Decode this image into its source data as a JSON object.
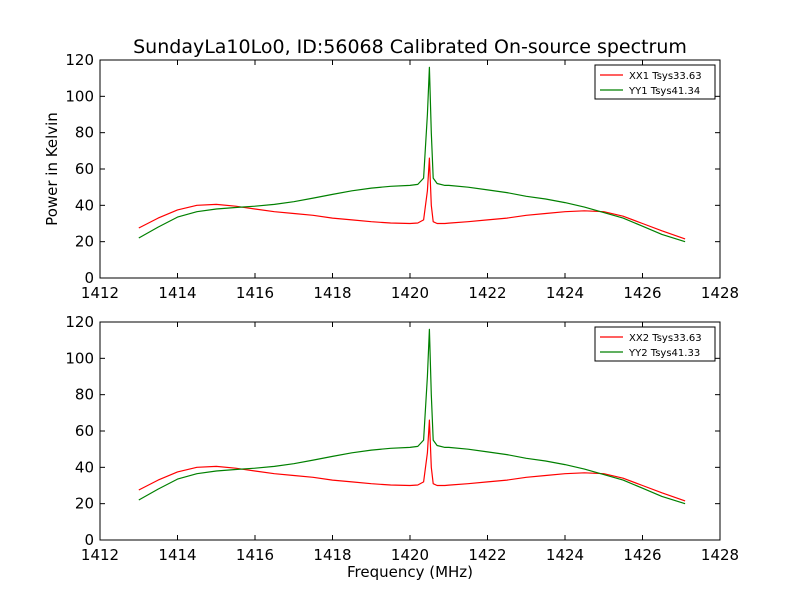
{
  "title": "SundayLa10Lo0, ID:56068 Calibrated On-source spectrum",
  "colors": {
    "xx": "#ff0000",
    "yy": "#008000",
    "axis": "#000000",
    "background": "#ffffff"
  },
  "chart_data": [
    {
      "type": "line",
      "title": "SundayLa10Lo0, ID:56068 Calibrated On-source spectrum",
      "xlabel": "",
      "ylabel": "Power in Kelvin",
      "xlim": [
        1412,
        1428
      ],
      "ylim": [
        0,
        120
      ],
      "xticks": [
        "1412",
        "1414",
        "1416",
        "1418",
        "1420",
        "1422",
        "1424",
        "1426",
        "1428"
      ],
      "yticks": [
        "0",
        "20",
        "40",
        "60",
        "80",
        "100",
        "120"
      ],
      "grid": false,
      "legend_position": "top-right",
      "x": [
        1413.0,
        1413.5,
        1414.0,
        1414.5,
        1415.0,
        1415.5,
        1416.0,
        1416.5,
        1417.0,
        1417.5,
        1418.0,
        1418.5,
        1419.0,
        1419.5,
        1420.0,
        1420.2,
        1420.35,
        1420.45,
        1420.5,
        1420.55,
        1420.6,
        1420.7,
        1420.9,
        1421.0,
        1421.5,
        1422.0,
        1422.5,
        1423.0,
        1423.5,
        1424.0,
        1424.5,
        1425.0,
        1425.5,
        1426.0,
        1426.5,
        1427.1
      ],
      "series": [
        {
          "name": "XX1 Tsys33.63",
          "color": "#ff0000",
          "values": [
            27.5,
            33,
            37.5,
            40,
            40.5,
            39.5,
            38,
            36.5,
            35.5,
            34.5,
            33,
            32,
            31,
            30.3,
            30,
            30.3,
            32,
            48,
            66,
            40,
            31,
            30,
            30,
            30.2,
            31,
            32,
            33,
            34.5,
            35.5,
            36.5,
            37,
            36.5,
            34,
            30,
            26,
            21.5
          ]
        },
        {
          "name": "YY1 Tsys41.34",
          "color": "#008000",
          "values": [
            22,
            28,
            33.5,
            36.5,
            38,
            38.8,
            39.5,
            40.5,
            42,
            44,
            46,
            48,
            49.5,
            50.5,
            51,
            51.5,
            55,
            90,
            116,
            80,
            55,
            52,
            51,
            51,
            50,
            48.5,
            47,
            45,
            43.5,
            41.5,
            39,
            36,
            33,
            28.5,
            24,
            20
          ]
        }
      ]
    },
    {
      "type": "line",
      "title": "",
      "xlabel": "Frequency (MHz)",
      "ylabel": "",
      "xlim": [
        1412,
        1428
      ],
      "ylim": [
        0,
        120
      ],
      "xticks": [
        "1412",
        "1414",
        "1416",
        "1418",
        "1420",
        "1422",
        "1424",
        "1426",
        "1428"
      ],
      "yticks": [
        "0",
        "20",
        "40",
        "60",
        "80",
        "100",
        "120"
      ],
      "grid": false,
      "legend_position": "top-right",
      "x": [
        1413.0,
        1413.5,
        1414.0,
        1414.5,
        1415.0,
        1415.5,
        1416.0,
        1416.5,
        1417.0,
        1417.5,
        1418.0,
        1418.5,
        1419.0,
        1419.5,
        1420.0,
        1420.2,
        1420.35,
        1420.45,
        1420.5,
        1420.55,
        1420.6,
        1420.7,
        1420.9,
        1421.0,
        1421.5,
        1422.0,
        1422.5,
        1423.0,
        1423.5,
        1424.0,
        1424.5,
        1425.0,
        1425.5,
        1426.0,
        1426.5,
        1427.1
      ],
      "series": [
        {
          "name": "XX2 Tsys33.63",
          "color": "#ff0000",
          "values": [
            27.5,
            33,
            37.5,
            40,
            40.5,
            39.5,
            38,
            36.5,
            35.5,
            34.5,
            33,
            32,
            31,
            30.3,
            30,
            30.3,
            32,
            48,
            66,
            40,
            31,
            30,
            30,
            30.2,
            31,
            32,
            33,
            34.5,
            35.5,
            36.5,
            37,
            36.5,
            34,
            30,
            26,
            21.5
          ]
        },
        {
          "name": "YY2 Tsys41.33",
          "color": "#008000",
          "values": [
            22,
            28,
            33.5,
            36.5,
            38,
            38.8,
            39.5,
            40.5,
            42,
            44,
            46,
            48,
            49.5,
            50.5,
            51,
            51.5,
            55,
            90,
            116,
            80,
            55,
            52,
            51,
            51,
            50,
            48.5,
            47,
            45,
            43.5,
            41.5,
            39,
            36,
            33,
            28.5,
            24,
            20
          ]
        }
      ]
    }
  ]
}
